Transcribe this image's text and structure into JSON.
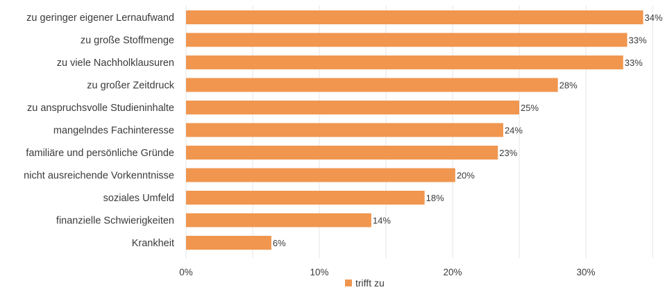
{
  "chart_data": {
    "type": "bar",
    "orientation": "horizontal",
    "categories": [
      "zu geringer eigener Lernaufwand",
      "zu große Stoffmenge",
      "zu viele Nachholklausuren",
      "zu großer Zeitdruck",
      "zu anspruchsvolle Studieninhalte",
      "mangelndes Fachinteresse",
      "familiäre und persönliche Gründe",
      "nicht ausreichende Vorkenntnisse",
      "soziales Umfeld",
      "finanzielle Schwierigkeiten",
      "Krankheit"
    ],
    "series": [
      {
        "name": "trifft zu",
        "values": [
          34.3,
          33.1,
          32.8,
          27.9,
          25.0,
          23.8,
          23.4,
          20.2,
          17.9,
          13.9,
          6.4
        ],
        "data_labels": [
          "34%",
          "33%",
          "33%",
          "28%",
          "25%",
          "24%",
          "23%",
          "20%",
          "18%",
          "14%",
          "6%"
        ]
      }
    ],
    "xlim": [
      0,
      36
    ],
    "ticks": [
      0,
      10,
      20,
      30
    ],
    "tick_labels": [
      "0%",
      "10%",
      "20%",
      "30%"
    ],
    "grid": true,
    "legend": "bottom",
    "bar_color": "#f0964f"
  }
}
